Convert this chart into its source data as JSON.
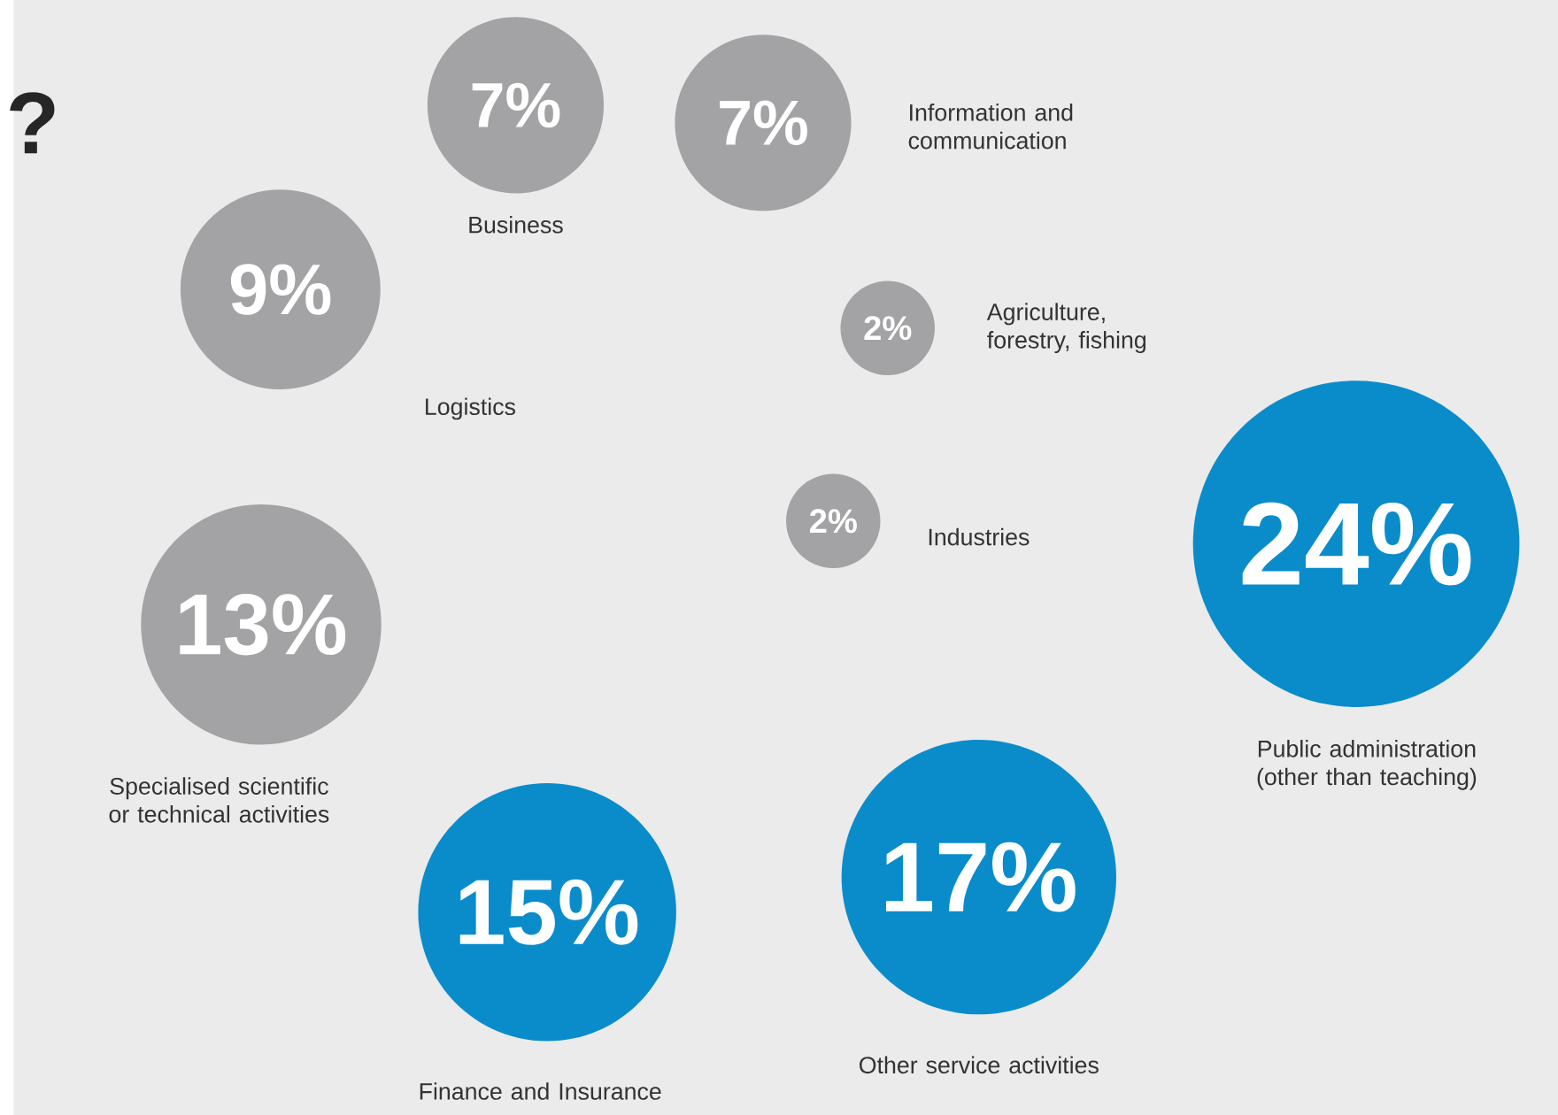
{
  "chart_data": {
    "type": "other",
    "title": "?",
    "categories": [
      "Business",
      "Information and communication",
      "Logistics",
      "Agriculture, forestry, fishing",
      "Industries",
      "Public administration (other than teaching)",
      "Specialised scientific or technical activities",
      "Finance and Insurance",
      "Other service activities"
    ],
    "values": [
      7,
      7,
      9,
      2,
      2,
      24,
      13,
      15,
      17
    ],
    "value_labels": [
      "7%",
      "7%",
      "9%",
      "2%",
      "2%",
      "24%",
      "13%",
      "15%",
      "17%"
    ],
    "colors": [
      "#a3a3a5",
      "#a3a3a5",
      "#a3a3a5",
      "#a3a3a5",
      "#a3a3a5",
      "#0a8ccb",
      "#a3a3a5",
      "#0a8ccb",
      "#0a8ccb"
    ]
  }
}
